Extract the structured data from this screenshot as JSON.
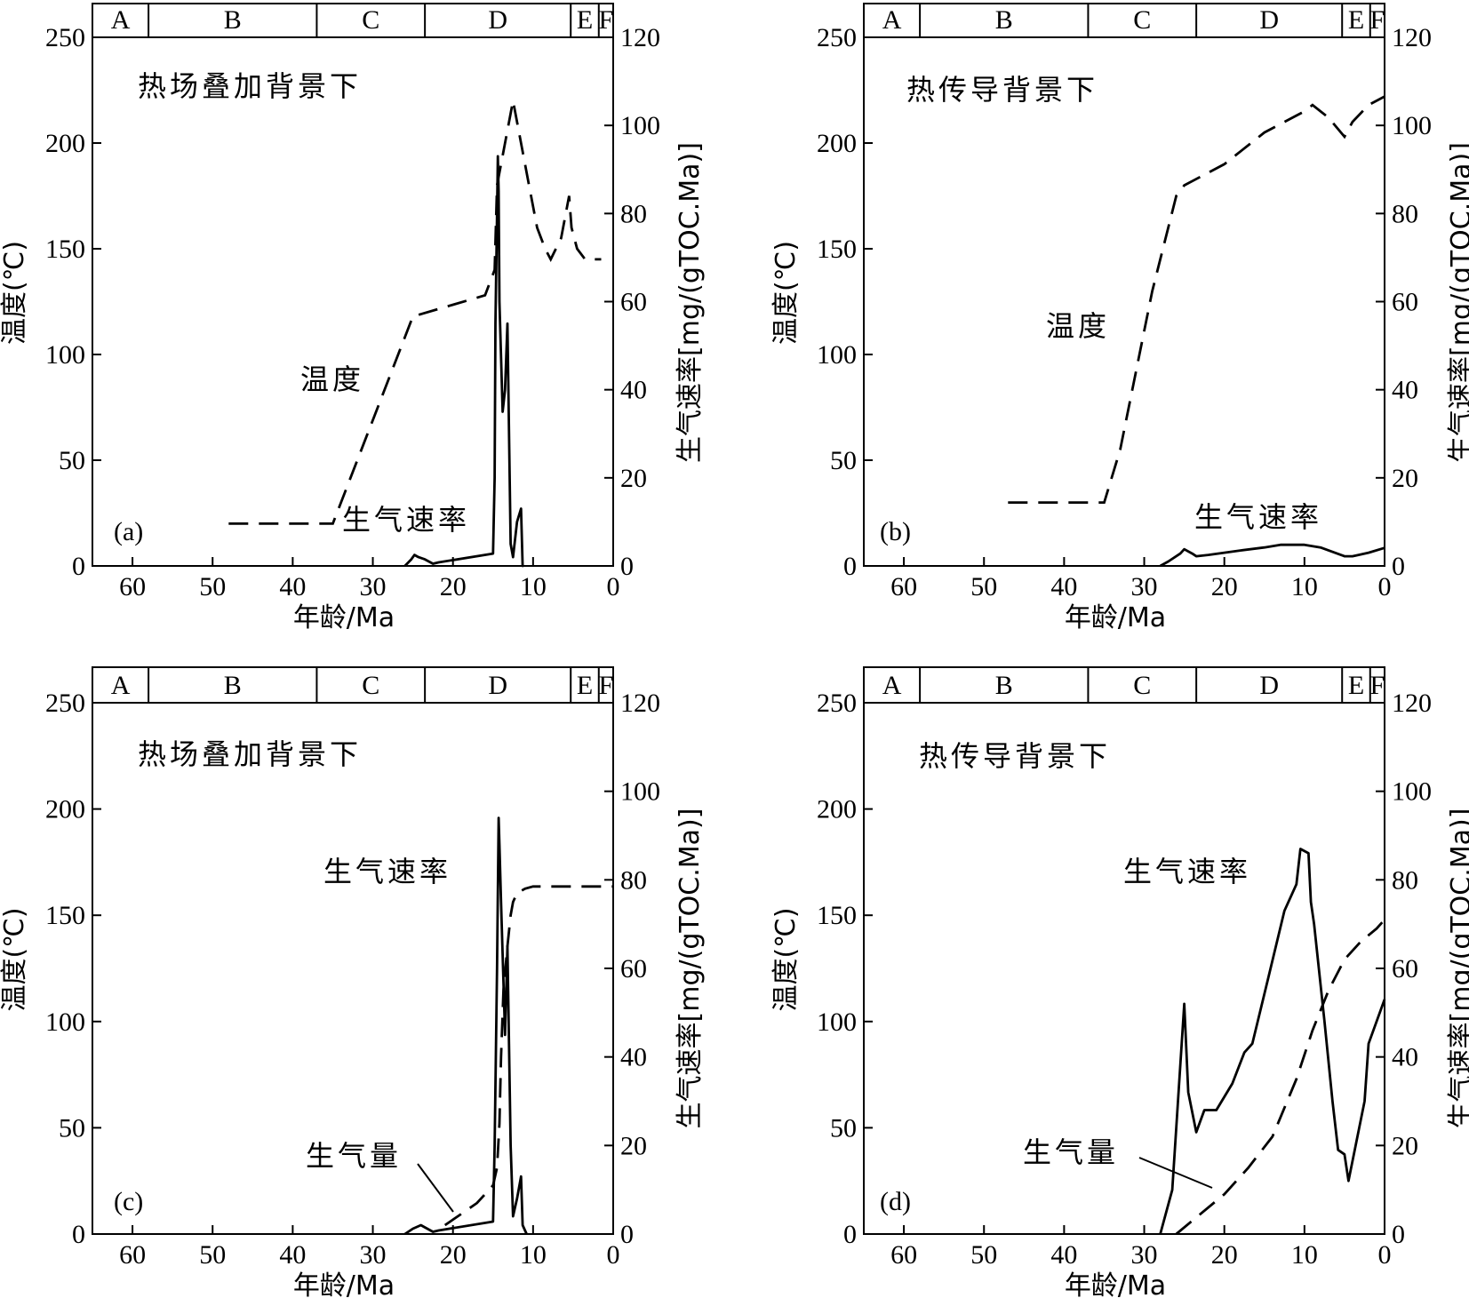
{
  "colors": {
    "ink": "#000000",
    "background": "#ffffff"
  },
  "chart_data": [
    {
      "panel_label": "(a)",
      "type": "line",
      "title": "热场叠加背景下",
      "xlabel": "年龄/Ma",
      "ylabel_left": "温度(℃)",
      "ylabel_right": "生气速率[mg/(gTOC.Ma)]",
      "xlim": [
        65,
        0
      ],
      "ylim_left": [
        0,
        250
      ],
      "ylim_right": [
        0,
        120
      ],
      "x_ticks": [
        "60",
        "50",
        "40",
        "30",
        "20",
        "10",
        "0"
      ],
      "y_ticks_left": [
        "0",
        "50",
        "100",
        "150",
        "200",
        "250"
      ],
      "y_ticks_right": [
        "0",
        "20",
        "40",
        "60",
        "80",
        "100",
        "120"
      ],
      "strata": [
        "A",
        "B",
        "C",
        "D",
        "E",
        "F"
      ],
      "strata_bounds_ma": [
        65,
        58,
        37,
        23.5,
        5.3,
        1.8,
        0
      ],
      "series": [
        {
          "label": "温度",
          "style": "dashed",
          "axis": "left",
          "x": [
            48,
            35,
            25,
            16,
            14.8,
            14.5,
            12.5,
            11,
            10.5,
            9.5,
            8.5,
            7.8,
            6.5,
            5.5,
            5.2,
            4.5,
            3.5,
            1.5
          ],
          "y": [
            20,
            20,
            118,
            128,
            140,
            180,
            220,
            190,
            180,
            160,
            150,
            145,
            155,
            175,
            160,
            150,
            145,
            145
          ]
        },
        {
          "label": "生气速率",
          "style": "solid",
          "axis": "right",
          "x": [
            26,
            25.2,
            24.8,
            24.3,
            23.5,
            22.5,
            21.8,
            15,
            14.8,
            14.7,
            14.5,
            14.4,
            14.3,
            14.2,
            13.8,
            13.5,
            13.2,
            12.8,
            12.5,
            12,
            11.5,
            11.3,
            11.2
          ],
          "y": [
            0,
            1.5,
            2.5,
            2,
            1.5,
            0.5,
            0.8,
            2.8,
            20,
            55,
            80,
            93,
            85,
            60,
            35,
            40,
            55,
            5,
            2,
            10,
            13,
            0,
            0
          ]
        }
      ],
      "annotations": [
        "温度",
        "生气速率"
      ]
    },
    {
      "panel_label": "(b)",
      "type": "line",
      "title": "热传导背景下",
      "xlabel": "年龄/Ma",
      "ylabel_left": "温度(℃)",
      "ylabel_right": "生气速率[mg/(gTOC.Ma)]",
      "xlim": [
        65,
        0
      ],
      "ylim_left": [
        0,
        250
      ],
      "ylim_right": [
        0,
        120
      ],
      "x_ticks": [
        "60",
        "50",
        "40",
        "30",
        "20",
        "10",
        "0"
      ],
      "y_ticks_left": [
        "0",
        "50",
        "100",
        "150",
        "200",
        "250"
      ],
      "y_ticks_right": [
        "0",
        "20",
        "40",
        "60",
        "80",
        "100",
        "120"
      ],
      "strata": [
        "A",
        "B",
        "C",
        "D",
        "E",
        "F"
      ],
      "strata_bounds_ma": [
        65,
        58,
        37,
        23.5,
        5.3,
        1.8,
        0
      ],
      "series": [
        {
          "label": "温度",
          "style": "dashed",
          "axis": "left",
          "x": [
            47,
            35,
            33,
            29,
            26,
            25,
            20,
            15,
            10,
            9,
            7,
            5,
            4,
            2,
            0
          ],
          "y": [
            30,
            30,
            55,
            130,
            175,
            180,
            190,
            205,
            215,
            218,
            212,
            203,
            210,
            218,
            222
          ]
        },
        {
          "label": "生气速率",
          "style": "solid",
          "axis": "right",
          "x": [
            28,
            27,
            25.5,
            25,
            24,
            23.5,
            22,
            20,
            18,
            15,
            13,
            10,
            8,
            5,
            4,
            2,
            0
          ],
          "y": [
            0,
            1,
            2.8,
            3.8,
            2.8,
            2.2,
            2.5,
            3,
            3.5,
            4.2,
            4.8,
            4.8,
            4.2,
            2.2,
            2.2,
            3,
            4.1
          ]
        }
      ],
      "annotations": [
        "温度",
        "生气速率"
      ]
    },
    {
      "panel_label": "(c)",
      "type": "line",
      "title": "热场叠加背景下",
      "xlabel": "年龄/Ma",
      "ylabel_left": "温度(℃)",
      "ylabel_right": "生气速率[mg/(gTOC.Ma)]",
      "xlim": [
        65,
        0
      ],
      "ylim_left": [
        0,
        250
      ],
      "ylim_right": [
        0,
        120
      ],
      "x_ticks": [
        "60",
        "50",
        "40",
        "30",
        "20",
        "10",
        "0"
      ],
      "y_ticks_left": [
        "0",
        "50",
        "100",
        "150",
        "200",
        "250"
      ],
      "y_ticks_right": [
        "0",
        "20",
        "40",
        "60",
        "80",
        "100",
        "120"
      ],
      "strata": [
        "A",
        "B",
        "C",
        "D",
        "E",
        "F"
      ],
      "strata_bounds_ma": [
        65,
        58,
        37,
        23.5,
        5.3,
        1.8,
        0
      ],
      "series": [
        {
          "label": "生气速率",
          "style": "solid",
          "axis": "right",
          "x": [
            26,
            25,
            24,
            23.5,
            22.5,
            21.8,
            15,
            14.8,
            14.5,
            14.3,
            14.2,
            14,
            13.5,
            13.2,
            12.8,
            12.5,
            12,
            11.5,
            11.3,
            10.8
          ],
          "y": [
            0,
            1.2,
            2,
            1.5,
            0.5,
            0.8,
            2.8,
            20,
            60,
            94,
            88,
            75,
            45,
            65,
            20,
            4,
            8,
            13,
            2,
            0
          ]
        },
        {
          "label": "生气量",
          "style": "dashed",
          "axis": "right",
          "x": [
            21,
            19,
            17,
            16,
            15,
            14.5,
            14.2,
            14,
            13.7,
            13.2,
            12.8,
            12.5,
            12,
            11,
            10,
            5,
            0
          ],
          "y": [
            2,
            4.5,
            7,
            9,
            11,
            15,
            25,
            40,
            55,
            65,
            72,
            75,
            77,
            78,
            78.5,
            78.5,
            78.5
          ]
        }
      ],
      "annotations": [
        "生气速率",
        "生气量"
      ]
    },
    {
      "panel_label": "(d)",
      "type": "line",
      "title": "热传导背景下",
      "xlabel": "年龄/Ma",
      "ylabel_left": "温度(℃)",
      "ylabel_right": "生气速率[mg/(gTOC.Ma)]",
      "xlim": [
        65,
        0
      ],
      "ylim_left": [
        0,
        250
      ],
      "ylim_right": [
        0,
        120
      ],
      "x_ticks": [
        "60",
        "50",
        "40",
        "30",
        "20",
        "10",
        "0"
      ],
      "y_ticks_left": [
        "0",
        "50",
        "100",
        "150",
        "200",
        "250"
      ],
      "y_ticks_right": [
        "0",
        "20",
        "40",
        "60",
        "80",
        "100",
        "120"
      ],
      "strata": [
        "A",
        "B",
        "C",
        "D",
        "E",
        "F"
      ],
      "strata_bounds_ma": [
        65,
        58,
        37,
        23.5,
        5.3,
        1.8,
        0
      ],
      "series": [
        {
          "label": "生气速率",
          "style": "solid",
          "axis": "right",
          "x": [
            28,
            26.5,
            25.5,
            25,
            24.5,
            23.5,
            22.5,
            21,
            19,
            17.5,
            16.5,
            14.5,
            12.5,
            11,
            10.5,
            9.5,
            9.2,
            8.8,
            7.5,
            6.5,
            5.8,
            5,
            4.5,
            2.5,
            2,
            0
          ],
          "y": [
            0,
            10,
            38,
            52,
            32,
            23,
            28,
            28,
            34,
            41,
            43,
            58,
            73,
            79,
            87,
            86,
            75,
            70,
            48,
            30,
            19,
            18,
            12,
            30,
            43,
            53
          ]
        },
        {
          "label": "生气量",
          "style": "dashed",
          "axis": "right",
          "x": [
            26,
            24,
            20,
            17,
            14,
            11,
            9,
            7,
            5,
            3,
            1,
            0
          ],
          "y": [
            0,
            3,
            9,
            15,
            22,
            35,
            46,
            55,
            62,
            66,
            69,
            71
          ]
        }
      ],
      "annotations": [
        "生气速率",
        "生气量"
      ]
    }
  ]
}
